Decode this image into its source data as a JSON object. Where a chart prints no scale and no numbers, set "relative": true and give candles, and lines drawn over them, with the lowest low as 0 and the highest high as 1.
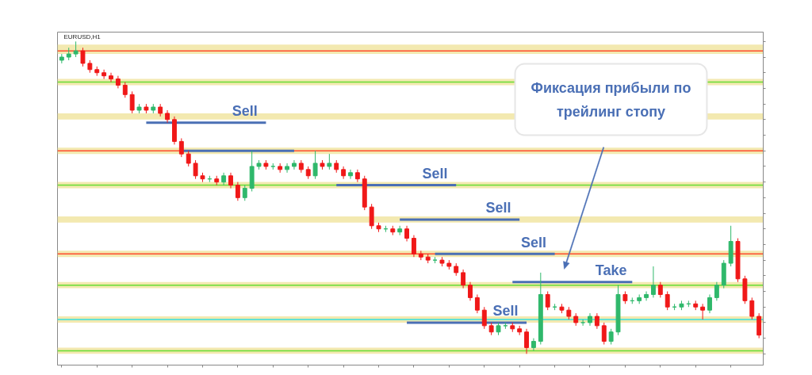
{
  "chart_data": {
    "type": "candlestick",
    "title": "EURUSD,H1",
    "relative": true,
    "tick_labels": false,
    "categories": [
      null,
      null,
      null,
      null,
      null,
      null,
      null,
      null,
      null,
      null,
      null,
      null,
      null,
      null,
      null,
      null,
      null,
      null,
      null,
      null,
      null,
      null,
      null,
      null,
      null,
      null,
      null,
      null,
      null,
      null,
      null,
      null,
      null,
      null,
      null,
      null,
      null,
      null,
      null,
      null,
      null,
      null,
      null,
      null,
      null,
      null,
      null,
      null,
      null,
      null,
      null,
      null,
      null,
      null,
      null,
      null,
      null,
      null,
      null,
      null,
      null,
      null,
      null,
      null,
      null,
      null,
      null,
      null,
      null,
      null,
      null,
      null,
      null,
      null,
      null,
      null,
      null,
      null,
      null,
      null,
      null,
      null,
      null,
      null,
      null,
      null,
      null,
      null,
      null,
      null,
      null,
      null,
      null,
      null,
      null,
      null,
      null,
      null,
      null,
      null
    ],
    "ohlc": [
      [
        0.94,
        0.96,
        0.93,
        0.95
      ],
      [
        0.95,
        0.98,
        0.94,
        0.96
      ],
      [
        0.96,
        1.0,
        0.95,
        0.97
      ],
      [
        0.97,
        0.98,
        0.92,
        0.93
      ],
      [
        0.93,
        0.94,
        0.9,
        0.91
      ],
      [
        0.91,
        0.92,
        0.89,
        0.9
      ],
      [
        0.9,
        0.91,
        0.88,
        0.89
      ],
      [
        0.89,
        0.9,
        0.87,
        0.88
      ],
      [
        0.88,
        0.89,
        0.85,
        0.86
      ],
      [
        0.86,
        0.87,
        0.82,
        0.83
      ],
      [
        0.83,
        0.84,
        0.77,
        0.78
      ],
      [
        0.78,
        0.8,
        0.77,
        0.79
      ],
      [
        0.79,
        0.8,
        0.77,
        0.78
      ],
      [
        0.78,
        0.8,
        0.77,
        0.79
      ],
      [
        0.79,
        0.8,
        0.76,
        0.77
      ],
      [
        0.77,
        0.78,
        0.74,
        0.75
      ],
      [
        0.75,
        0.76,
        0.67,
        0.68
      ],
      [
        0.68,
        0.69,
        0.63,
        0.64
      ],
      [
        0.64,
        0.65,
        0.6,
        0.61
      ],
      [
        0.61,
        0.62,
        0.56,
        0.57
      ],
      [
        0.57,
        0.58,
        0.55,
        0.56
      ],
      [
        0.56,
        0.57,
        0.55,
        0.56
      ],
      [
        0.56,
        0.57,
        0.54,
        0.55
      ],
      [
        0.55,
        0.58,
        0.54,
        0.57
      ],
      [
        0.57,
        0.58,
        0.53,
        0.54
      ],
      [
        0.54,
        0.55,
        0.49,
        0.5
      ],
      [
        0.5,
        0.54,
        0.49,
        0.53
      ],
      [
        0.53,
        0.65,
        0.52,
        0.6
      ],
      [
        0.6,
        0.62,
        0.59,
        0.61
      ],
      [
        0.61,
        0.62,
        0.59,
        0.6
      ],
      [
        0.6,
        0.61,
        0.59,
        0.6
      ],
      [
        0.6,
        0.61,
        0.58,
        0.59
      ],
      [
        0.59,
        0.61,
        0.58,
        0.6
      ],
      [
        0.6,
        0.62,
        0.59,
        0.61
      ],
      [
        0.61,
        0.62,
        0.58,
        0.59
      ],
      [
        0.59,
        0.6,
        0.56,
        0.57
      ],
      [
        0.57,
        0.65,
        0.56,
        0.61
      ],
      [
        0.61,
        0.62,
        0.59,
        0.6
      ],
      [
        0.6,
        0.64,
        0.59,
        0.61
      ],
      [
        0.61,
        0.62,
        0.58,
        0.59
      ],
      [
        0.59,
        0.6,
        0.56,
        0.57
      ],
      [
        0.57,
        0.59,
        0.56,
        0.58
      ],
      [
        0.58,
        0.59,
        0.55,
        0.56
      ],
      [
        0.56,
        0.57,
        0.46,
        0.47
      ],
      [
        0.47,
        0.48,
        0.4,
        0.41
      ],
      [
        0.41,
        0.42,
        0.39,
        0.4
      ],
      [
        0.4,
        0.41,
        0.39,
        0.4
      ],
      [
        0.4,
        0.41,
        0.38,
        0.39
      ],
      [
        0.39,
        0.41,
        0.38,
        0.4
      ],
      [
        0.4,
        0.41,
        0.36,
        0.37
      ],
      [
        0.37,
        0.38,
        0.31,
        0.32
      ],
      [
        0.32,
        0.33,
        0.3,
        0.31
      ],
      [
        0.31,
        0.32,
        0.29,
        0.3
      ],
      [
        0.3,
        0.31,
        0.29,
        0.3
      ],
      [
        0.3,
        0.31,
        0.28,
        0.29
      ],
      [
        0.29,
        0.3,
        0.27,
        0.28
      ],
      [
        0.28,
        0.29,
        0.25,
        0.26
      ],
      [
        0.26,
        0.27,
        0.21,
        0.22
      ],
      [
        0.22,
        0.23,
        0.17,
        0.18
      ],
      [
        0.18,
        0.19,
        0.13,
        0.14
      ],
      [
        0.14,
        0.15,
        0.08,
        0.09
      ],
      [
        0.09,
        0.1,
        0.06,
        0.07
      ],
      [
        0.07,
        0.1,
        0.06,
        0.09
      ],
      [
        0.09,
        0.1,
        0.08,
        0.09
      ],
      [
        0.09,
        0.1,
        0.07,
        0.08
      ],
      [
        0.08,
        0.09,
        0.06,
        0.07
      ],
      [
        0.07,
        0.08,
        0.0,
        0.02
      ],
      [
        0.02,
        0.05,
        0.01,
        0.04
      ],
      [
        0.04,
        0.26,
        0.03,
        0.19
      ],
      [
        0.19,
        0.2,
        0.14,
        0.15
      ],
      [
        0.15,
        0.16,
        0.14,
        0.15
      ],
      [
        0.15,
        0.16,
        0.13,
        0.14
      ],
      [
        0.14,
        0.15,
        0.11,
        0.12
      ],
      [
        0.12,
        0.13,
        0.09,
        0.1
      ],
      [
        0.1,
        0.11,
        0.09,
        0.1
      ],
      [
        0.1,
        0.13,
        0.09,
        0.12
      ],
      [
        0.12,
        0.13,
        0.08,
        0.09
      ],
      [
        0.09,
        0.1,
        0.03,
        0.04
      ],
      [
        0.04,
        0.08,
        0.03,
        0.07
      ],
      [
        0.07,
        0.22,
        0.06,
        0.19
      ],
      [
        0.19,
        0.2,
        0.16,
        0.17
      ],
      [
        0.17,
        0.18,
        0.16,
        0.17
      ],
      [
        0.17,
        0.19,
        0.16,
        0.18
      ],
      [
        0.18,
        0.2,
        0.17,
        0.19
      ],
      [
        0.19,
        0.28,
        0.18,
        0.22
      ],
      [
        0.22,
        0.23,
        0.18,
        0.19
      ],
      [
        0.19,
        0.2,
        0.14,
        0.15
      ],
      [
        0.15,
        0.16,
        0.14,
        0.15
      ],
      [
        0.15,
        0.17,
        0.14,
        0.16
      ],
      [
        0.16,
        0.17,
        0.15,
        0.16
      ],
      [
        0.16,
        0.17,
        0.14,
        0.15
      ],
      [
        0.15,
        0.16,
        0.11,
        0.14
      ],
      [
        0.14,
        0.19,
        0.13,
        0.18
      ],
      [
        0.18,
        0.23,
        0.17,
        0.22
      ],
      [
        0.22,
        0.3,
        0.21,
        0.29
      ],
      [
        0.29,
        0.41,
        0.28,
        0.36
      ],
      [
        0.36,
        0.37,
        0.23,
        0.24
      ],
      [
        0.24,
        0.25,
        0.16,
        0.17
      ],
      [
        0.17,
        0.18,
        0.11,
        0.12
      ],
      [
        0.12,
        0.13,
        0.05,
        0.06
      ]
    ],
    "colors": [
      "#2fb86b",
      "#2fb86b",
      "#2fb86b",
      "#f01818",
      "#f01818",
      "#f01818",
      "#f01818",
      "#f01818",
      "#f01818",
      "#f01818",
      "#f01818",
      "#2fb86b",
      "#f01818",
      "#2fb86b",
      "#f01818",
      "#f01818",
      "#f01818",
      "#f01818",
      "#f01818",
      "#f01818",
      "#f01818",
      "#2fb86b",
      "#f01818",
      "#2fb86b",
      "#f01818",
      "#f01818",
      "#2fb86b",
      "#2fb86b",
      "#2fb86b",
      "#f01818",
      "#2fb86b",
      "#f01818",
      "#2fb86b",
      "#2fb86b",
      "#f01818",
      "#f01818",
      "#2fb86b",
      "#f01818",
      "#2fb86b",
      "#f01818",
      "#f01818",
      "#2fb86b",
      "#f01818",
      "#f01818",
      "#f01818",
      "#f01818",
      "#2fb86b",
      "#f01818",
      "#2fb86b",
      "#f01818",
      "#f01818",
      "#f01818",
      "#f01818",
      "#2fb86b",
      "#f01818",
      "#f01818",
      "#f01818",
      "#f01818",
      "#f01818",
      "#f01818",
      "#f01818",
      "#f01818",
      "#2fb86b",
      "#2fb86b",
      "#f01818",
      "#f01818",
      "#f01818",
      "#2fb86b",
      "#2fb86b",
      "#f01818",
      "#2fb86b",
      "#f01818",
      "#f01818",
      "#f01818",
      "#2fb86b",
      "#2fb86b",
      "#f01818",
      "#f01818",
      "#2fb86b",
      "#2fb86b",
      "#f01818",
      "#2fb86b",
      "#2fb86b",
      "#2fb86b",
      "#2fb86b",
      "#f01818",
      "#f01818",
      "#2fb86b",
      "#2fb86b",
      "#2fb86b",
      "#f01818",
      "#f01818",
      "#2fb86b",
      "#2fb86b",
      "#2fb86b",
      "#2fb86b",
      "#f01818",
      "#f01818",
      "#f01818",
      "#f01818"
    ],
    "series": [
      {
        "type": "line",
        "name": "Sell",
        "color": "#4a6fb5",
        "values": [
          null,
          null,
          null,
          null,
          null,
          null,
          null,
          null,
          null,
          null,
          null,
          null,
          0.74,
          0.74,
          0.74,
          0.74,
          0.74,
          0.74,
          0.74,
          0.74,
          0.74,
          0.74,
          0.74,
          0.74,
          0.74,
          0.74,
          0.74,
          0.74,
          0.74,
          0.74,
          null,
          null,
          null,
          null,
          null,
          null,
          null,
          null,
          null,
          null,
          null,
          null,
          null,
          null,
          null,
          null,
          null,
          null,
          null,
          null,
          null,
          null,
          null,
          null,
          null,
          null,
          null,
          null,
          null,
          null,
          null,
          null,
          null,
          null,
          null,
          null,
          null,
          null,
          null,
          null,
          null,
          null,
          null,
          null,
          null,
          null,
          null,
          null,
          null,
          null,
          null,
          null,
          null,
          null,
          null,
          null,
          null,
          null,
          null,
          null,
          null,
          null,
          null,
          null,
          null,
          null,
          null,
          null,
          null,
          null
        ]
      },
      {
        "type": "line",
        "color": "#4a6fb5",
        "values": [
          null,
          null,
          null,
          null,
          null,
          null,
          null,
          null,
          null,
          null,
          null,
          null,
          null,
          null,
          null,
          null,
          null,
          0.65,
          0.65,
          0.65,
          0.65,
          0.65,
          0.65,
          0.65,
          0.65,
          0.65,
          0.65,
          0.65,
          0.65,
          0.65,
          0.65,
          0.65,
          0.65,
          0.65,
          null,
          null,
          null,
          null,
          null,
          null,
          null,
          null,
          null,
          null,
          null,
          null,
          null,
          null,
          null,
          null,
          null,
          null,
          null,
          null,
          null,
          null,
          null,
          null,
          null,
          null,
          null,
          null,
          null,
          null,
          null,
          null,
          null,
          null,
          null,
          null,
          null,
          null,
          null,
          null,
          null,
          null,
          null,
          null,
          null,
          null,
          null,
          null,
          null,
          null,
          null,
          null,
          null,
          null,
          null,
          null,
          null,
          null,
          null,
          null,
          null,
          null,
          null,
          null,
          null,
          null
        ]
      },
      {
        "type": "line",
        "name": "Sell",
        "color": "#4a6fb5",
        "values": [
          null,
          null,
          null,
          null,
          null,
          null,
          null,
          null,
          null,
          null,
          null,
          null,
          null,
          null,
          null,
          null,
          null,
          null,
          null,
          null,
          null,
          null,
          null,
          null,
          null,
          null,
          null,
          null,
          null,
          null,
          null,
          null,
          null,
          null,
          null,
          null,
          null,
          null,
          null,
          0.54,
          0.54,
          0.54,
          0.54,
          0.54,
          0.54,
          0.54,
          0.54,
          0.54,
          0.54,
          0.54,
          0.54,
          0.54,
          0.54,
          0.54,
          0.54,
          0.54,
          0.54,
          null,
          null,
          null,
          null,
          null,
          null,
          null,
          null,
          null,
          null,
          null,
          null,
          null,
          null,
          null,
          null,
          null,
          null,
          null,
          null,
          null,
          null,
          null,
          null,
          null,
          null,
          null,
          null,
          null,
          null,
          null,
          null,
          null,
          null,
          null,
          null,
          null,
          null,
          null,
          null,
          null,
          null,
          null
        ]
      },
      {
        "type": "line",
        "name": "Sell",
        "color": "#4a6fb5",
        "values": [
          null,
          null,
          null,
          null,
          null,
          null,
          null,
          null,
          null,
          null,
          null,
          null,
          null,
          null,
          null,
          null,
          null,
          null,
          null,
          null,
          null,
          null,
          null,
          null,
          null,
          null,
          null,
          null,
          null,
          null,
          null,
          null,
          null,
          null,
          null,
          null,
          null,
          null,
          null,
          null,
          null,
          null,
          null,
          null,
          null,
          null,
          null,
          null,
          0.43,
          0.43,
          0.43,
          0.43,
          0.43,
          0.43,
          0.43,
          0.43,
          0.43,
          0.43,
          0.43,
          0.43,
          0.43,
          0.43,
          0.43,
          0.43,
          0.43,
          0.43,
          null,
          null,
          null,
          null,
          null,
          null,
          null,
          null,
          null,
          null,
          null,
          null,
          null,
          null,
          null,
          null,
          null,
          null,
          null,
          null,
          null,
          null,
          null,
          null,
          null,
          null,
          null,
          null,
          null,
          null,
          null,
          null,
          null,
          null
        ]
      },
      {
        "type": "line",
        "name": "Sell",
        "color": "#4a6fb5",
        "values": [
          null,
          null,
          null,
          null,
          null,
          null,
          null,
          null,
          null,
          null,
          null,
          null,
          null,
          null,
          null,
          null,
          null,
          null,
          null,
          null,
          null,
          null,
          null,
          null,
          null,
          null,
          null,
          null,
          null,
          null,
          null,
          null,
          null,
          null,
          null,
          null,
          null,
          null,
          null,
          null,
          null,
          null,
          null,
          null,
          null,
          null,
          null,
          null,
          null,
          null,
          null,
          null,
          null,
          0.32,
          0.32,
          0.32,
          0.32,
          0.32,
          0.32,
          0.32,
          0.32,
          0.32,
          0.32,
          0.32,
          0.32,
          0.32,
          0.32,
          0.32,
          0.32,
          0.32,
          0.32,
          null,
          null,
          null,
          null,
          null,
          null,
          null,
          null,
          null,
          null,
          null,
          null,
          null,
          null,
          null,
          null,
          null,
          null,
          null,
          null,
          null,
          null,
          null,
          null,
          null,
          null,
          null,
          null,
          null
        ]
      },
      {
        "type": "line",
        "name": "Take",
        "color": "#4a6fb5",
        "values": [
          null,
          null,
          null,
          null,
          null,
          null,
          null,
          null,
          null,
          null,
          null,
          null,
          null,
          null,
          null,
          null,
          null,
          null,
          null,
          null,
          null,
          null,
          null,
          null,
          null,
          null,
          null,
          null,
          null,
          null,
          null,
          null,
          null,
          null,
          null,
          null,
          null,
          null,
          null,
          null,
          null,
          null,
          null,
          null,
          null,
          null,
          null,
          null,
          null,
          null,
          null,
          null,
          null,
          null,
          null,
          null,
          null,
          null,
          null,
          null,
          null,
          null,
          null,
          null,
          0.23,
          0.23,
          0.23,
          0.23,
          0.23,
          0.23,
          0.23,
          0.23,
          0.23,
          0.23,
          0.23,
          0.23,
          0.23,
          0.23,
          0.23,
          0.23,
          0.23,
          0.23,
          null,
          null,
          null,
          null,
          null,
          null,
          null,
          null,
          null,
          null,
          null,
          null,
          null,
          null,
          null,
          null,
          null,
          null
        ]
      },
      {
        "type": "line",
        "name": "Sell",
        "color": "#4a6fb5",
        "values": [
          null,
          null,
          null,
          null,
          null,
          null,
          null,
          null,
          null,
          null,
          null,
          null,
          null,
          null,
          null,
          null,
          null,
          null,
          null,
          null,
          null,
          null,
          null,
          null,
          null,
          null,
          null,
          null,
          null,
          null,
          null,
          null,
          null,
          null,
          null,
          null,
          null,
          null,
          null,
          null,
          null,
          null,
          null,
          null,
          null,
          null,
          null,
          null,
          null,
          0.1,
          0.1,
          0.1,
          0.1,
          0.1,
          0.1,
          0.1,
          0.1,
          0.1,
          0.1,
          0.1,
          0.1,
          0.1,
          0.1,
          0.1,
          0.1,
          0.1,
          0.1,
          null,
          null,
          null,
          null,
          null,
          null,
          null,
          null,
          null,
          null,
          null,
          null,
          null,
          null,
          null,
          null,
          null,
          null,
          null,
          null,
          null,
          null,
          null,
          null,
          null,
          null,
          null,
          null,
          null,
          null,
          null,
          null,
          null
        ]
      }
    ],
    "bands": [
      {
        "axis": "y",
        "from": 0.96,
        "to": 0.99,
        "color": "#f3e9b0"
      },
      {
        "axis": "y",
        "from": 0.86,
        "to": 0.88,
        "color": "#f3e9b0"
      },
      {
        "axis": "y",
        "from": 0.75,
        "to": 0.77,
        "color": "#f3e9b0"
      },
      {
        "axis": "y",
        "from": 0.64,
        "to": 0.66,
        "color": "#f3e9b0"
      },
      {
        "axis": "y",
        "from": 0.53,
        "to": 0.55,
        "color": "#f3e9b0"
      },
      {
        "axis": "y",
        "from": 0.42,
        "to": 0.44,
        "color": "#f3e9b0"
      },
      {
        "axis": "y",
        "from": 0.31,
        "to": 0.33,
        "color": "#f3e9b0"
      },
      {
        "axis": "y",
        "from": 0.21,
        "to": 0.23,
        "color": "#f3e9b0"
      },
      {
        "axis": "y",
        "from": 0.1,
        "to": 0.12,
        "color": "#f3e9b0"
      },
      {
        "axis": "y",
        "from": 0.0,
        "to": 0.02,
        "color": "#f3e9b0"
      }
    ],
    "ref_lines": [
      {
        "axis": "y",
        "value": 0.97,
        "color": "#ff4d2e"
      },
      {
        "axis": "y",
        "value": 0.87,
        "color": "#66dd33"
      },
      {
        "axis": "y",
        "value": 0.65,
        "color": "#ff4d2e"
      },
      {
        "axis": "y",
        "value": 0.54,
        "color": "#66dd33"
      },
      {
        "axis": "y",
        "value": 0.32,
        "color": "#ff4d2e"
      },
      {
        "axis": "y",
        "value": 0.22,
        "color": "#66dd33"
      },
      {
        "axis": "y",
        "value": 0.11,
        "color": "#33e0e0"
      },
      {
        "axis": "y",
        "value": 0.01,
        "color": "#66dd33"
      }
    ],
    "annotations": [
      "Фиксация прибыли по\nтрейлинг стопу"
    ]
  }
}
